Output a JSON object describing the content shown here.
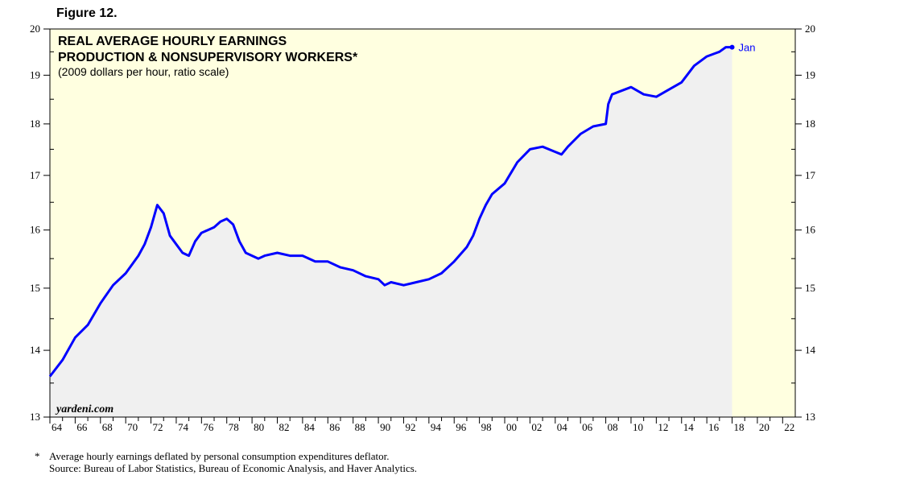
{
  "figure_label": "Figure 12.",
  "watermark": "yardeni.com",
  "end_annotation": "Jan",
  "footnote": {
    "marker": "*",
    "line1": "Average hourly earnings deflated by personal consumption expenditures deflator.",
    "line2": "Source: Bureau of Labor Statistics, Bureau of Economic Analysis, and Haver Analytics."
  },
  "colors": {
    "plot_background": "#ffffe0",
    "area_fill": "#f0f0f0",
    "line": "#0000ff",
    "annotation": "#0000ff"
  },
  "chart_data": {
    "type": "area",
    "title": "REAL AVERAGE HOURLY EARNINGS",
    "subtitle": "PRODUCTION & NONSUPERVISORY WORKERS*",
    "subtitle2": "(2009 dollars per hour, ratio scale)",
    "y_scale": "log",
    "ylim": [
      13,
      20
    ],
    "xlim": [
      1964,
      2023
    ],
    "yticks": [
      13,
      14,
      15,
      16,
      17,
      18,
      19,
      20
    ],
    "xtick_labels": [
      "64",
      "66",
      "68",
      "70",
      "72",
      "74",
      "76",
      "78",
      "80",
      "82",
      "84",
      "86",
      "88",
      "90",
      "92",
      "94",
      "96",
      "98",
      "00",
      "02",
      "04",
      "06",
      "08",
      "10",
      "12",
      "14",
      "16",
      "18",
      "20",
      "22"
    ],
    "grid": false,
    "series": [
      {
        "x": [
          1964.0,
          1965.0,
          1966.0,
          1967.0,
          1968.0,
          1969.0,
          1970.0,
          1971.0,
          1971.5,
          1972.0,
          1972.5,
          1973.0,
          1973.5,
          1974.0,
          1974.5,
          1975.0,
          1975.5,
          1976.0,
          1976.5,
          1977.0,
          1977.5,
          1978.0,
          1978.5,
          1979.0,
          1979.5,
          1980.0,
          1980.5,
          1981.0,
          1982.0,
          1983.0,
          1984.0,
          1985.0,
          1986.0,
          1987.0,
          1988.0,
          1989.0,
          1990.0,
          1990.5,
          1991.0,
          1992.0,
          1993.0,
          1994.0,
          1995.0,
          1996.0,
          1997.0,
          1997.5,
          1998.0,
          1998.5,
          1999.0,
          2000.0,
          2001.0,
          2002.0,
          2003.0,
          2004.0,
          2004.5,
          2005.0,
          2006.0,
          2007.0,
          2008.0,
          2008.2,
          2008.5,
          2009.0,
          2010.0,
          2011.0,
          2012.0,
          2013.0,
          2014.0,
          2015.0,
          2016.0,
          2017.0,
          2017.5,
          2018.0
        ],
        "values": [
          13.6,
          13.85,
          14.2,
          14.4,
          14.75,
          15.05,
          15.25,
          15.55,
          15.75,
          16.05,
          16.45,
          16.3,
          15.9,
          15.75,
          15.6,
          15.55,
          15.8,
          15.95,
          16.0,
          16.05,
          16.15,
          16.2,
          16.1,
          15.8,
          15.6,
          15.55,
          15.5,
          15.55,
          15.6,
          15.55,
          15.55,
          15.45,
          15.45,
          15.35,
          15.3,
          15.2,
          15.15,
          15.05,
          15.1,
          15.05,
          15.1,
          15.15,
          15.25,
          15.45,
          15.7,
          15.9,
          16.2,
          16.45,
          16.65,
          16.85,
          17.25,
          17.5,
          17.55,
          17.45,
          17.4,
          17.55,
          17.8,
          17.95,
          18.0,
          18.4,
          18.6,
          18.65,
          18.75,
          18.6,
          18.55,
          18.7,
          18.85,
          19.2,
          19.4,
          19.5,
          19.6,
          19.6
        ]
      }
    ]
  }
}
